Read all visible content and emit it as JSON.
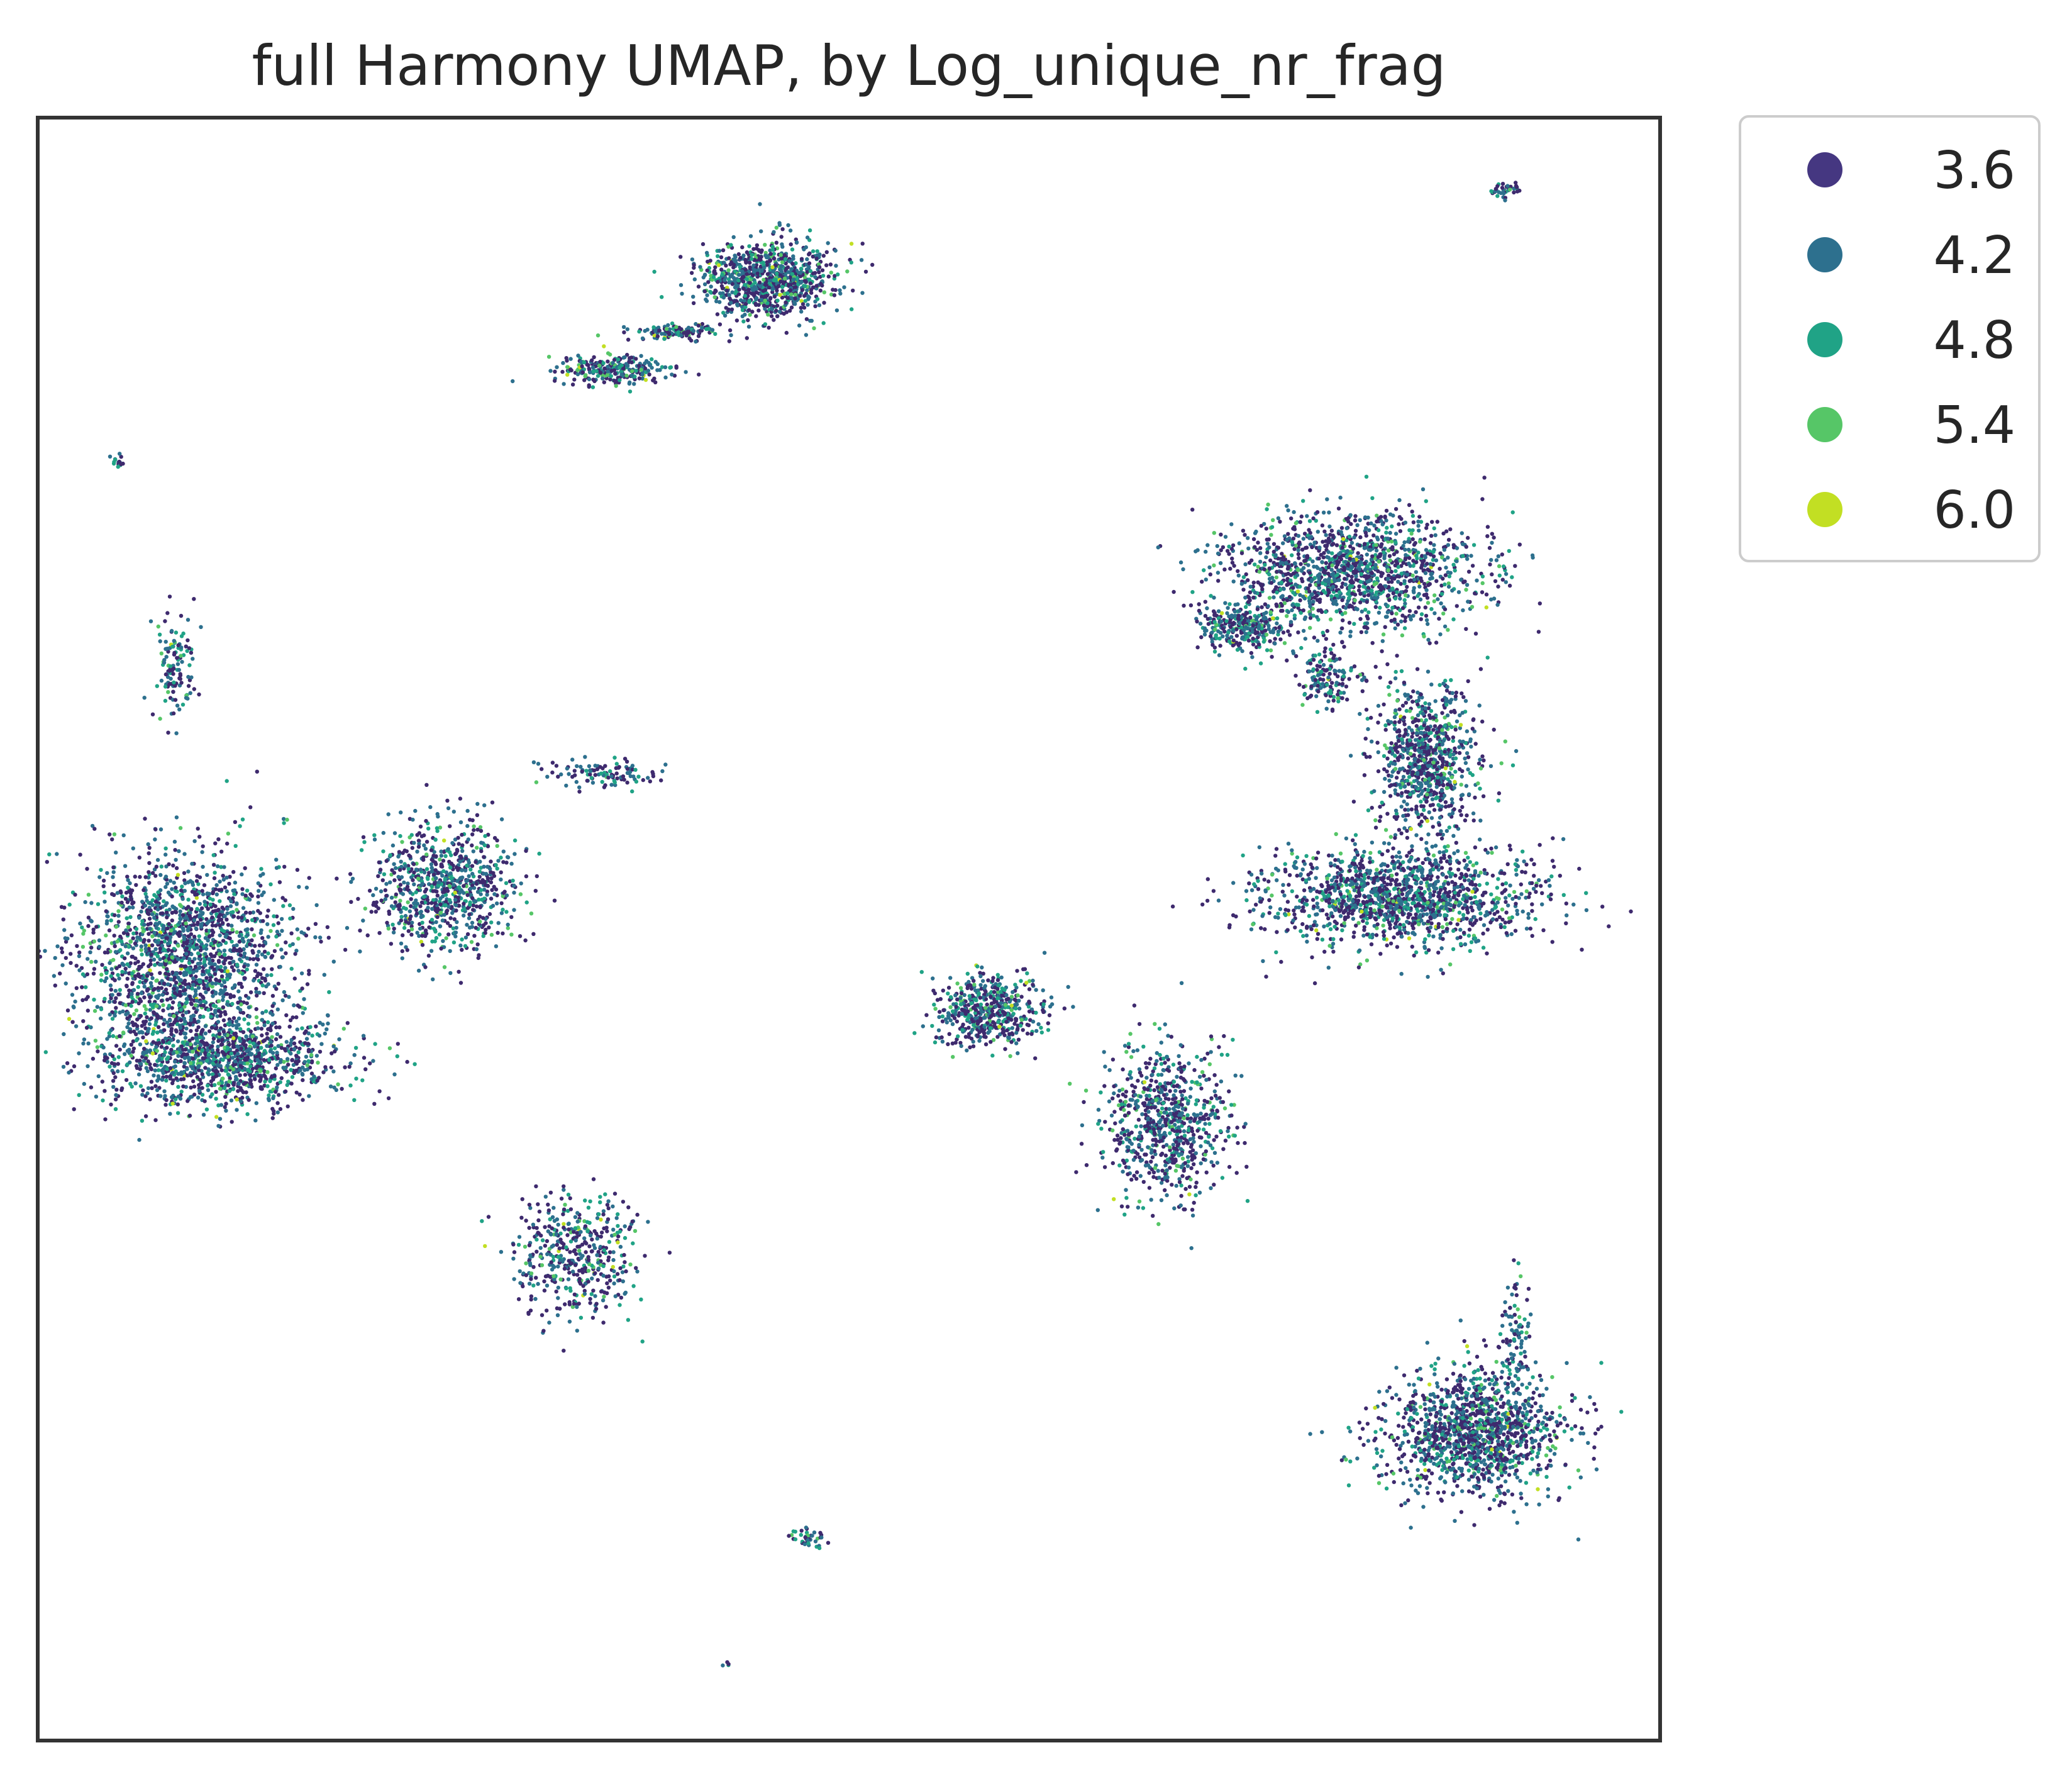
{
  "chart_data": {
    "type": "scatter",
    "title": "full Harmony UMAP, by Log_unique_nr_frag",
    "xlabel": "",
    "ylabel": "",
    "axis_ticks": false,
    "grid": false,
    "legend_position": "outside-top-right",
    "colormap": "viridis",
    "legend": [
      {
        "label": "3.6",
        "color": "#453781"
      },
      {
        "label": "4.2",
        "color": "#2d708e"
      },
      {
        "label": "4.8",
        "color": "#20a386"
      },
      {
        "label": "5.4",
        "color": "#56c667"
      },
      {
        "label": "6.0",
        "color": "#c2df23"
      }
    ],
    "xlim": [
      0,
      100
    ],
    "ylim": [
      0,
      100
    ],
    "clusters": [
      {
        "cx": 45.0,
        "cy": 90.0,
        "rx": 4.0,
        "ry": 2.4,
        "n": 900
      },
      {
        "cx": 35.5,
        "cy": 84.5,
        "rx": 3.6,
        "ry": 0.9,
        "n": 260
      },
      {
        "cx": 39.5,
        "cy": 86.8,
        "rx": 2.4,
        "ry": 0.5,
        "n": 120
      },
      {
        "cx": 90.5,
        "cy": 95.5,
        "rx": 1.0,
        "ry": 0.5,
        "n": 40
      },
      {
        "cx": 5.0,
        "cy": 78.8,
        "rx": 0.4,
        "ry": 0.4,
        "n": 15
      },
      {
        "cx": 8.5,
        "cy": 66.0,
        "rx": 1.2,
        "ry": 3.5,
        "n": 120
      },
      {
        "cx": 9.0,
        "cy": 48.5,
        "rx": 6.5,
        "ry": 6.0,
        "n": 1800
      },
      {
        "cx": 11.5,
        "cy": 42.0,
        "rx": 7.5,
        "ry": 2.8,
        "n": 1100
      },
      {
        "cx": 25.0,
        "cy": 52.5,
        "rx": 4.5,
        "ry": 4.0,
        "n": 800
      },
      {
        "cx": 35.0,
        "cy": 59.5,
        "rx": 3.5,
        "ry": 0.9,
        "n": 110
      },
      {
        "cx": 81.0,
        "cy": 72.0,
        "rx": 8.0,
        "ry": 3.5,
        "n": 1400
      },
      {
        "cx": 74.5,
        "cy": 68.5,
        "rx": 2.8,
        "ry": 1.5,
        "n": 300
      },
      {
        "cx": 85.5,
        "cy": 60.5,
        "rx": 3.0,
        "ry": 4.5,
        "n": 800
      },
      {
        "cx": 84.0,
        "cy": 52.0,
        "rx": 8.5,
        "ry": 3.0,
        "n": 1400
      },
      {
        "cx": 79.5,
        "cy": 65.5,
        "rx": 2.0,
        "ry": 2.0,
        "n": 150
      },
      {
        "cx": 58.5,
        "cy": 45.0,
        "rx": 3.2,
        "ry": 2.2,
        "n": 500
      },
      {
        "cx": 69.5,
        "cy": 38.0,
        "rx": 3.8,
        "ry": 4.6,
        "n": 750
      },
      {
        "cx": 33.0,
        "cy": 30.0,
        "rx": 4.0,
        "ry": 3.8,
        "n": 450
      },
      {
        "cx": 88.5,
        "cy": 19.0,
        "rx": 5.5,
        "ry": 3.8,
        "n": 1300
      },
      {
        "cx": 91.0,
        "cy": 25.5,
        "rx": 0.8,
        "ry": 3.5,
        "n": 80
      },
      {
        "cx": 47.5,
        "cy": 12.5,
        "rx": 1.0,
        "ry": 0.7,
        "n": 40
      },
      {
        "cx": 42.5,
        "cy": 4.7,
        "rx": 0.2,
        "ry": 0.2,
        "n": 4
      }
    ]
  }
}
